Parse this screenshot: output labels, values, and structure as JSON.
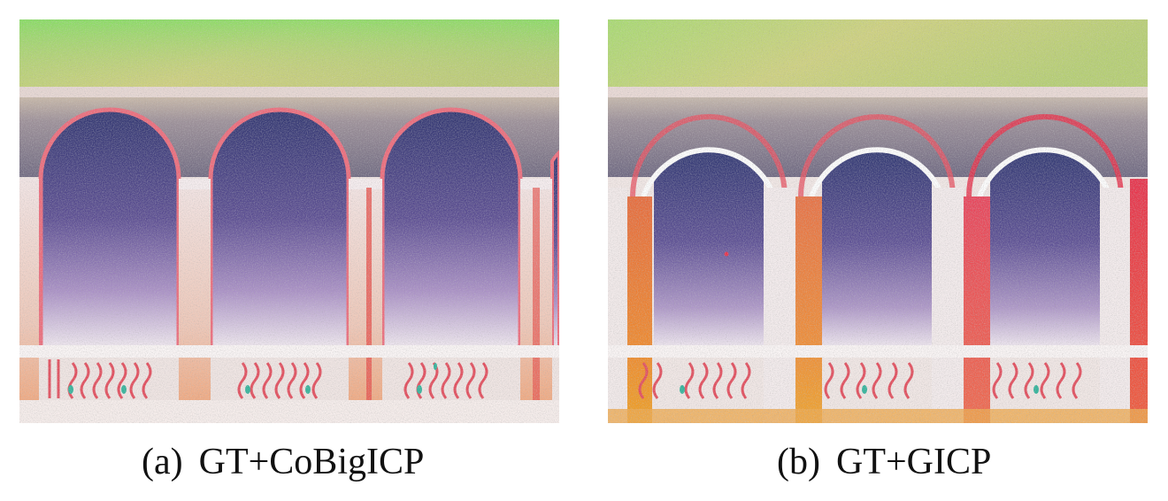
{
  "figure": {
    "panels": [
      {
        "id": "a",
        "tag": "(a)",
        "caption": "GT+CoBigICP",
        "render": "point-cloud-arcade-aligned"
      },
      {
        "id": "b",
        "tag": "(b)",
        "caption": "GT+GICP",
        "render": "point-cloud-arcade-misaligned"
      }
    ]
  },
  "colors": {
    "sky_green": "#7ed957",
    "sky_yellow": "#d8cf6a",
    "beam_grey": "#8a8190",
    "arch_dark": "#3a3a78",
    "arch_purple": "#8c6ab0",
    "column_white": "#f2e9ea",
    "orange": "#f07a2a",
    "red": "#e8304a",
    "teal": "#2fb39a"
  }
}
